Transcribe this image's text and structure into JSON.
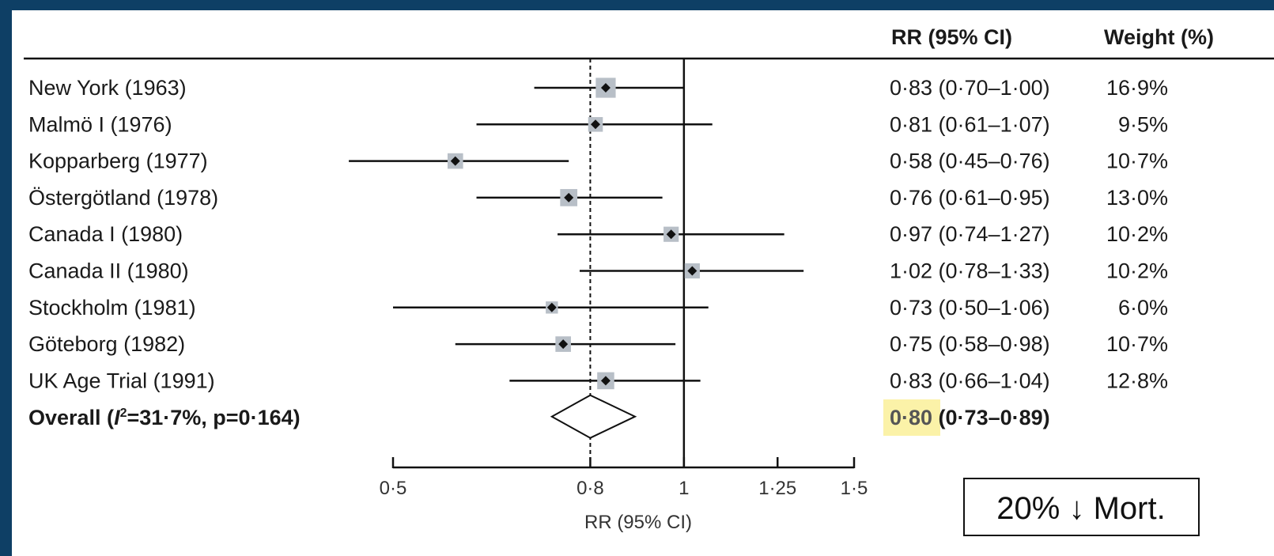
{
  "chart_data": {
    "type": "forest",
    "columns": {
      "estimate": "RR (95% CI)",
      "weight": "Weight (%)"
    },
    "xlabel": "RR (95% CI)",
    "x_scale": "log",
    "xlim": [
      0.5,
      1.5
    ],
    "x_ticks": [
      0.5,
      0.8,
      1,
      1.25,
      1.5
    ],
    "x_tick_labels": [
      "0·5",
      "0·8",
      "1",
      "1·25",
      "1·5"
    ],
    "reference_line": 1,
    "pooled_line": 0.8,
    "studies": [
      {
        "label": "New York (1963)",
        "rr": 0.83,
        "lo": 0.7,
        "hi": 1.0,
        "ci_text": "0·83 (0·70–1·00)",
        "weight": 16.9,
        "weight_text": "16·9%"
      },
      {
        "label": "Malmö I (1976)",
        "rr": 0.81,
        "lo": 0.61,
        "hi": 1.07,
        "ci_text": "0·81 (0·61–1·07)",
        "weight": 9.5,
        "weight_text": "9·5%"
      },
      {
        "label": "Kopparberg (1977)",
        "rr": 0.58,
        "lo": 0.45,
        "hi": 0.76,
        "ci_text": "0·58 (0·45–0·76)",
        "weight": 10.7,
        "weight_text": "10·7%"
      },
      {
        "label": "Östergötland (1978)",
        "rr": 0.76,
        "lo": 0.61,
        "hi": 0.95,
        "ci_text": "0·76 (0·61–0·95)",
        "weight": 13.0,
        "weight_text": "13·0%"
      },
      {
        "label": "Canada I (1980)",
        "rr": 0.97,
        "lo": 0.74,
        "hi": 1.27,
        "ci_text": "0·97 (0·74–1·27)",
        "weight": 10.2,
        "weight_text": "10·2%"
      },
      {
        "label": "Canada II (1980)",
        "rr": 1.02,
        "lo": 0.78,
        "hi": 1.33,
        "ci_text": "1·02 (0·78–1·33)",
        "weight": 10.2,
        "weight_text": "10·2%"
      },
      {
        "label": "Stockholm (1981)",
        "rr": 0.73,
        "lo": 0.5,
        "hi": 1.06,
        "ci_text": "0·73 (0·50–1·06)",
        "weight": 6.0,
        "weight_text": "6·0%"
      },
      {
        "label": "Göteborg (1982)",
        "rr": 0.75,
        "lo": 0.58,
        "hi": 0.98,
        "ci_text": "0·75 (0·58–0·98)",
        "weight": 10.7,
        "weight_text": "10·7%"
      },
      {
        "label": "UK Age Trial (1991)",
        "rr": 0.83,
        "lo": 0.66,
        "hi": 1.04,
        "ci_text": "0·83 (0·66–1·04)",
        "weight": 12.8,
        "weight_text": "12·8%"
      }
    ],
    "overall": {
      "label_prefix": "Overall (",
      "label_i": "I",
      "label_sup": "2",
      "label_rest": "=31·7%, p=0·164)",
      "rr": 0.8,
      "lo": 0.73,
      "hi": 0.89,
      "rr_text": "0·80",
      "ci_text": " (0·73–0·89)"
    },
    "annotation": "20% ↓ Mort.",
    "colors": {
      "frame": "#0e3f65",
      "square": "#b8bfc7",
      "highlight": "#fbf2a8"
    }
  }
}
